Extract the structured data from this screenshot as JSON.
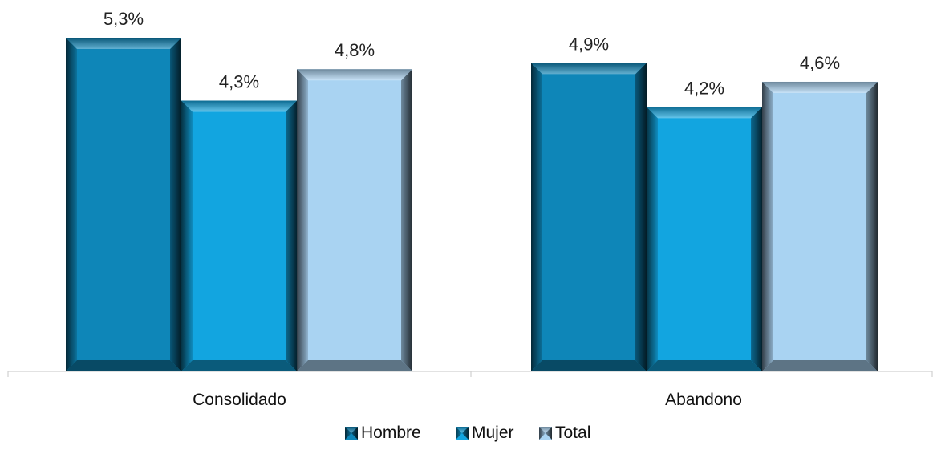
{
  "chart_data": {
    "type": "bar",
    "categories": [
      "Consolidado",
      "Abandono"
    ],
    "series": [
      {
        "name": "Hombre",
        "values": [
          5.3,
          4.9
        ],
        "labels": [
          "5,3%",
          "4,9%"
        ],
        "color": "#0E86B8"
      },
      {
        "name": "Mujer",
        "values": [
          4.3,
          4.2
        ],
        "labels": [
          "4,3%",
          "4,2%"
        ],
        "color": "#12A5E0"
      },
      {
        "name": "Total",
        "values": [
          4.8,
          4.6
        ],
        "labels": [
          "4,8%",
          "4,6%"
        ],
        "color": "#A9D3F2"
      }
    ],
    "title": "",
    "xlabel": "",
    "ylabel": "",
    "ylim": [
      0,
      5.3
    ],
    "grid": false,
    "legend_position": "bottom",
    "value_unit": "%"
  }
}
